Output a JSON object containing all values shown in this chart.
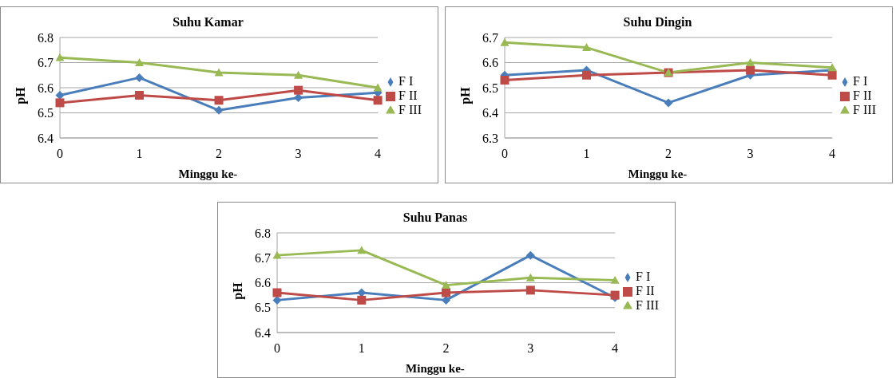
{
  "chart_data": [
    {
      "type": "line",
      "title": "Suhu Kamar",
      "xlabel": "Minggu ke-",
      "ylabel": "pH",
      "categories": [
        "0",
        "1",
        "2",
        "3",
        "4"
      ],
      "ylim": [
        6.4,
        6.8
      ],
      "yticks": [
        6.4,
        6.5,
        6.6,
        6.7,
        6.8
      ],
      "grid": "y",
      "legend": "right",
      "line_style": "solid",
      "series": [
        {
          "name": "F I",
          "color": "#4a7ebb",
          "marker": "diamond",
          "values": [
            6.57,
            6.64,
            6.51,
            6.56,
            6.58
          ]
        },
        {
          "name": "F II",
          "color": "#be4b48",
          "marker": "square",
          "values": [
            6.54,
            6.57,
            6.55,
            6.59,
            6.55
          ]
        },
        {
          "name": "F III",
          "color": "#98b954",
          "marker": "triangle",
          "values": [
            6.72,
            6.7,
            6.66,
            6.65,
            6.6
          ]
        }
      ]
    },
    {
      "type": "line",
      "title": "Suhu Dingin",
      "xlabel": "Minggu ke-",
      "ylabel": "pH",
      "categories": [
        "0",
        "1",
        "2",
        "3",
        "4"
      ],
      "ylim": [
        6.3,
        6.7
      ],
      "yticks": [
        6.3,
        6.4,
        6.5,
        6.6,
        6.7
      ],
      "grid": "y",
      "legend": "right",
      "line_style": "solid",
      "series": [
        {
          "name": "F I",
          "color": "#4a7ebb",
          "marker": "diamond",
          "values": [
            6.55,
            6.57,
            6.44,
            6.55,
            6.57
          ]
        },
        {
          "name": "F II",
          "color": "#be4b48",
          "marker": "square",
          "values": [
            6.53,
            6.55,
            6.56,
            6.57,
            6.55
          ]
        },
        {
          "name": "F III",
          "color": "#98b954",
          "marker": "triangle",
          "values": [
            6.68,
            6.66,
            6.56,
            6.6,
            6.58
          ]
        }
      ]
    },
    {
      "type": "line",
      "title": "Suhu Panas",
      "xlabel": "Minggu ke-",
      "ylabel": "pH",
      "categories": [
        "0",
        "1",
        "2",
        "3",
        "4"
      ],
      "ylim": [
        6.4,
        6.8
      ],
      "yticks": [
        6.4,
        6.5,
        6.6,
        6.7,
        6.8
      ],
      "grid": "y",
      "legend": "right",
      "line_style": "solid",
      "series": [
        {
          "name": "F I",
          "color": "#4a7ebb",
          "marker": "diamond",
          "values": [
            6.53,
            6.56,
            6.53,
            6.71,
            6.54
          ]
        },
        {
          "name": "F II",
          "color": "#be4b48",
          "marker": "square",
          "values": [
            6.56,
            6.53,
            6.56,
            6.57,
            6.55
          ]
        },
        {
          "name": "F III",
          "color": "#98b954",
          "marker": "triangle",
          "values": [
            6.71,
            6.73,
            6.59,
            6.62,
            6.61
          ]
        }
      ]
    }
  ]
}
